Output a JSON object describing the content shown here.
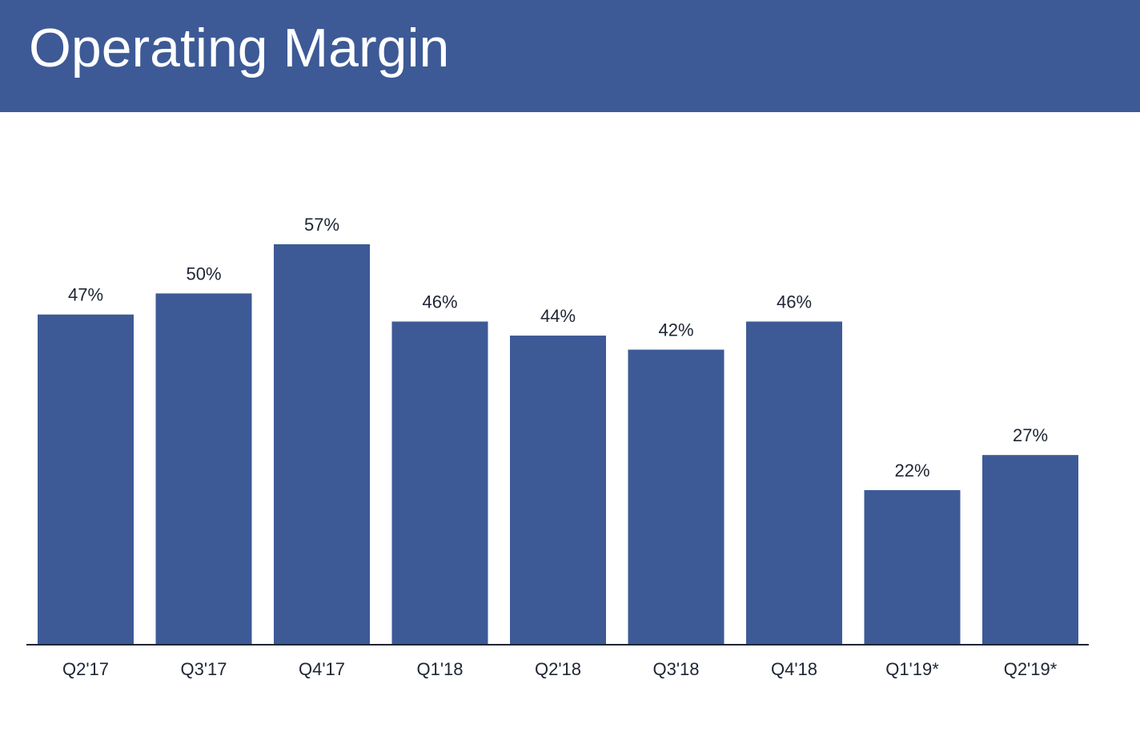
{
  "header": {
    "title": "Operating Margin"
  },
  "colors": {
    "header_background": "#3d5a96",
    "bar": "#3d5a96",
    "axis": "#1e2533",
    "text": "#1e2533",
    "background": "#ffffff"
  },
  "chart_data": {
    "type": "bar",
    "categories": [
      "Q2'17",
      "Q3'17",
      "Q4'17",
      "Q1'18",
      "Q2'18",
      "Q3'18",
      "Q4'18",
      "Q1'19*",
      "Q2'19*"
    ],
    "values": [
      47,
      50,
      57,
      46,
      44,
      42,
      46,
      22,
      27
    ],
    "data_labels": [
      "47%",
      "50%",
      "57%",
      "46%",
      "44%",
      "42%",
      "46%",
      "22%",
      "27%"
    ],
    "unit": "%",
    "ylim": [
      0,
      57
    ],
    "grid": false,
    "legend": "none",
    "title": "Operating Margin",
    "xlabel": "",
    "ylabel": ""
  }
}
